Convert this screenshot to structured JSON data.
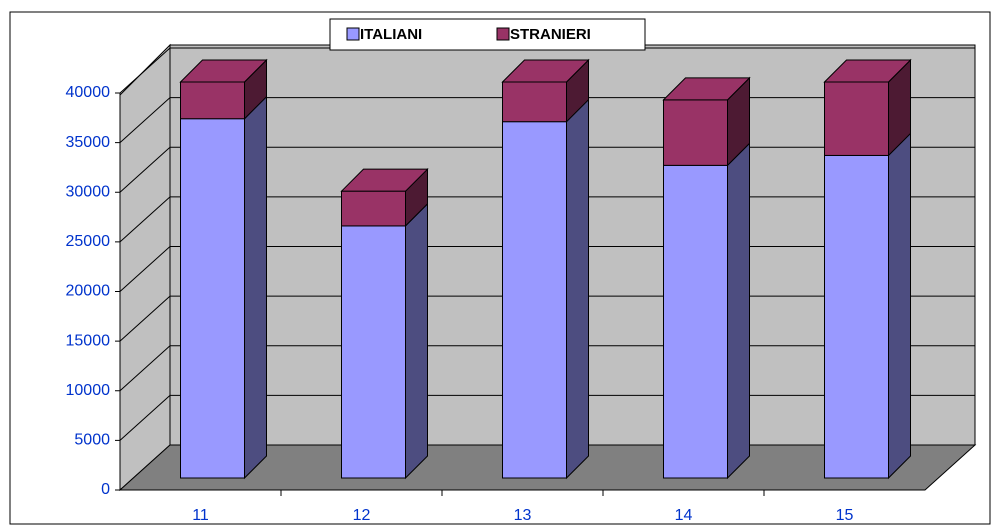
{
  "chart_data": {
    "type": "bar3d_stacked",
    "categories": [
      "11",
      "12",
      "13",
      "14",
      "15"
    ],
    "series": [
      {
        "name": "ITALIANI",
        "color": "#9999ff",
        "side": "#4d4d80",
        "values": [
          36200,
          25400,
          35900,
          31500,
          32500
        ]
      },
      {
        "name": "STRANIERI",
        "color": "#993366",
        "side": "#4d1a33",
        "values": [
          3700,
          3500,
          4000,
          6600,
          7400
        ]
      }
    ],
    "ylim": [
      0,
      40000
    ],
    "yticks": [
      0,
      5000,
      10000,
      15000,
      20000,
      25000,
      30000,
      35000,
      40000
    ],
    "grid": true,
    "legend": "top"
  }
}
